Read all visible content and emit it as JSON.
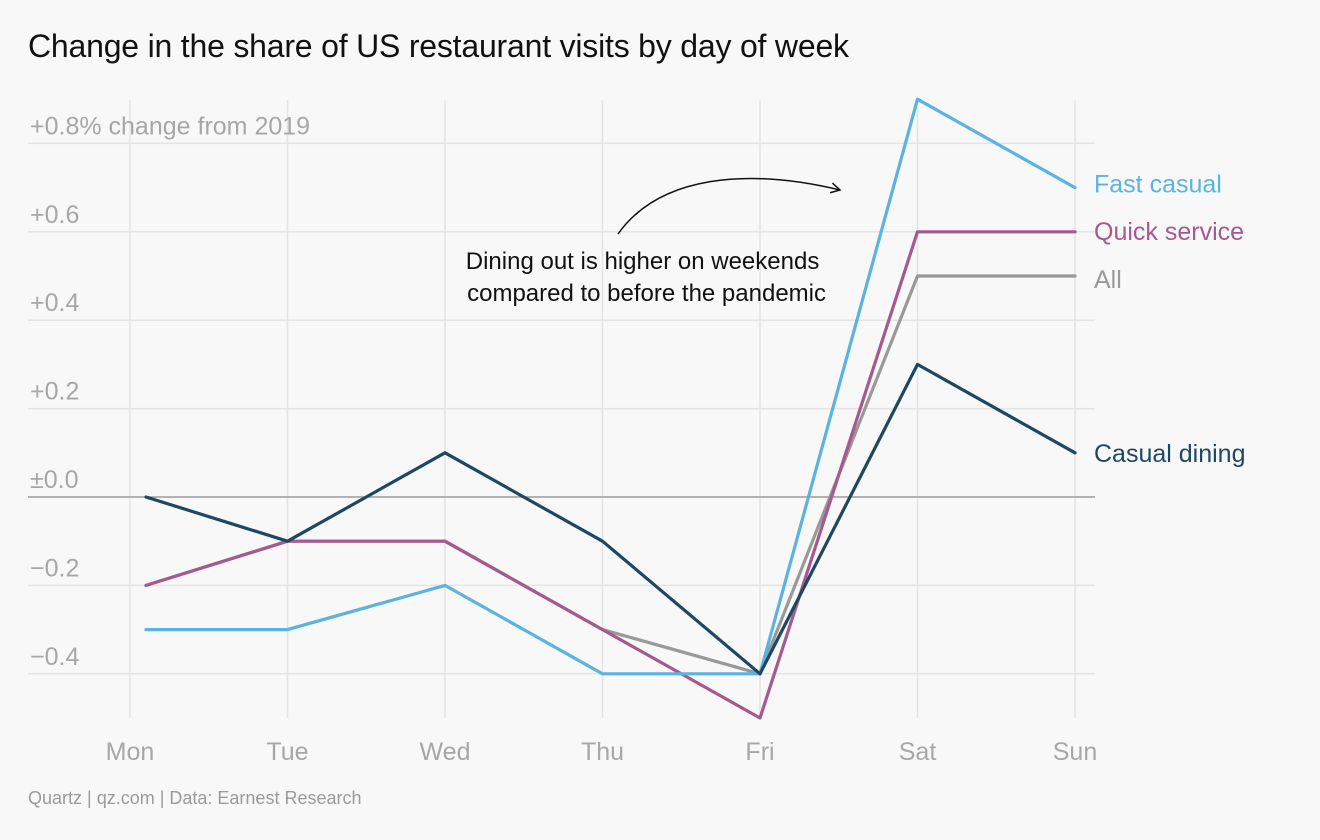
{
  "chart_data": {
    "type": "line",
    "title": "Change in the share of US restaurant visits by day of week",
    "ylabel": "+0.8% change from 2019",
    "xlabel": "",
    "categories": [
      "Mon",
      "Tue",
      "Wed",
      "Thu",
      "Fri",
      "Sat",
      "Sun"
    ],
    "ylim": [
      -0.5,
      0.9
    ],
    "yticks": [
      {
        "value": 0.8,
        "label": "+0.8% change from 2019"
      },
      {
        "value": 0.6,
        "label": "+0.6"
      },
      {
        "value": 0.4,
        "label": "+0.4"
      },
      {
        "value": 0.2,
        "label": "+0.2"
      },
      {
        "value": 0.0,
        "label": "±0.0"
      },
      {
        "value": -0.2,
        "label": "−0.2"
      },
      {
        "value": -0.4,
        "label": "−0.4"
      }
    ],
    "grid": true,
    "legend_placement": "right",
    "series": [
      {
        "name": "Fast casual",
        "color": "#5ab4df",
        "values": [
          -0.3,
          -0.3,
          -0.2,
          -0.4,
          -0.4,
          0.9,
          0.7
        ]
      },
      {
        "name": "Quick service",
        "color": "#a6598f",
        "values": [
          -0.2,
          -0.1,
          -0.1,
          -0.3,
          -0.5,
          0.6,
          0.6
        ]
      },
      {
        "name": "All",
        "color": "#999999",
        "values": [
          -0.2,
          -0.1,
          -0.1,
          -0.3,
          -0.4,
          0.5,
          0.5
        ]
      },
      {
        "name": "Casual dining",
        "color": "#1d4763",
        "values": [
          0.0,
          -0.1,
          0.1,
          -0.1,
          -0.4,
          0.3,
          0.1
        ]
      }
    ],
    "annotation": {
      "lines": [
        "Dining out is higher on weekends",
        "compared to before the pandemic"
      ]
    },
    "source": "Quartz | qz.com | Data: Earnest Research"
  }
}
